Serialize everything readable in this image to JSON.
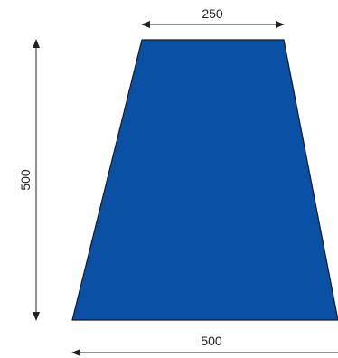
{
  "shape": {
    "type": "trapezoid",
    "fill_color": "#0a50a4",
    "outline_color": "#1a1a1a",
    "top_width": 250,
    "bottom_width": 500,
    "height": 500
  },
  "dimensions": {
    "top_label": "250",
    "height_label": "500",
    "bottom_label": "500",
    "line_color": "#222222"
  }
}
